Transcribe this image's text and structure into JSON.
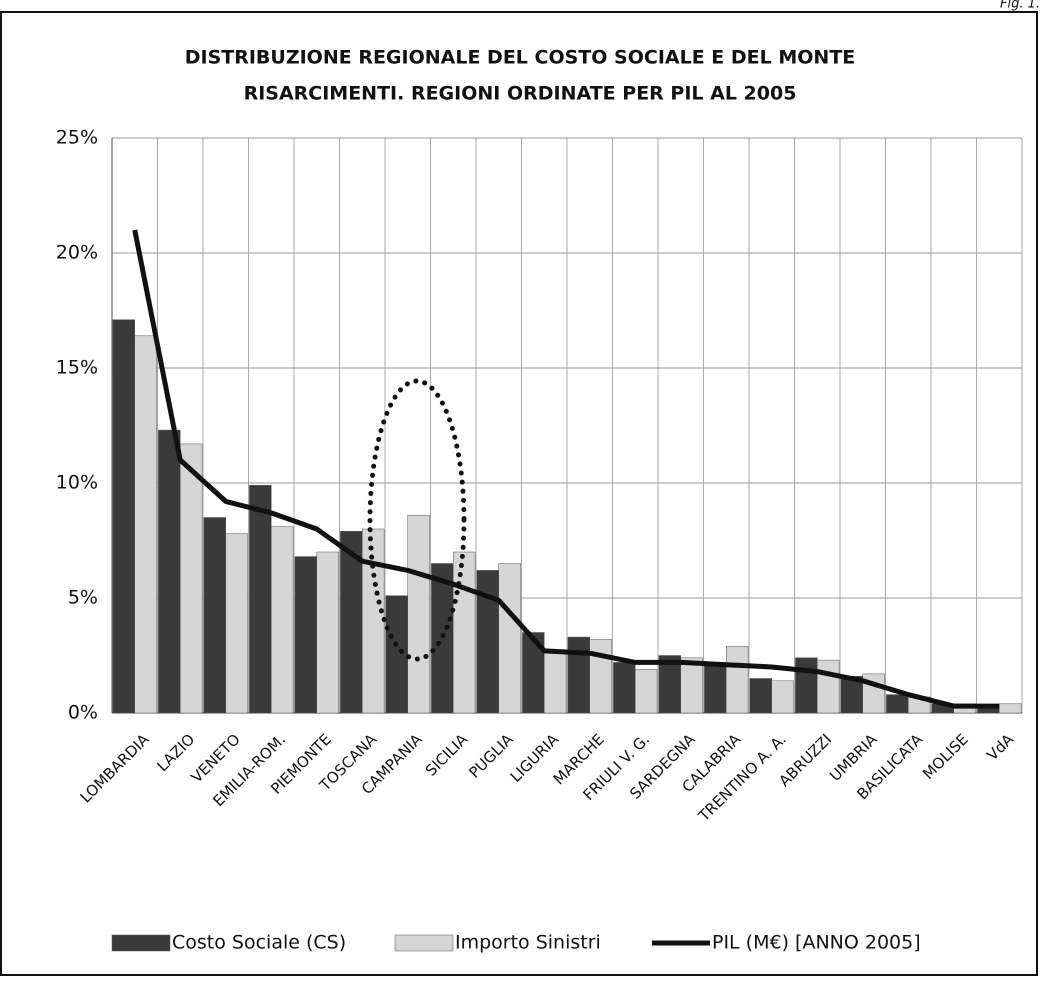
{
  "fig_label": "Fig. 1.",
  "chart_data": {
    "type": "bar_line",
    "title": [
      "DISTRIBUZIONE REGIONALE DEL COSTO SOCIALE E DEL MONTE",
      "RISARCIMENTI.  REGIONI ORDINATE PER PIL AL 2005"
    ],
    "categories": [
      "LOMBARDIA",
      "LAZIO",
      "VENETO",
      "EMILIA-ROM.",
      "PIEMONTE",
      "TOSCANA",
      "CAMPANIA",
      "SICILIA",
      "PUGLIA",
      "LIGURIA",
      "MARCHE",
      "FRIULI V. G.",
      "SARDEGNA",
      "CALABRIA",
      "TRENTINO A. A.",
      "ABRUZZI",
      "UMBRIA",
      "BASILICATA",
      "MOLISE",
      "VdA"
    ],
    "series": [
      {
        "name": "Costo Sociale (CS)",
        "kind": "bar",
        "color": "#3a3a3a",
        "values": [
          17.1,
          12.3,
          8.5,
          9.9,
          6.8,
          7.9,
          5.1,
          6.5,
          6.2,
          3.5,
          3.3,
          2.2,
          2.5,
          2.2,
          1.5,
          2.4,
          1.6,
          0.8,
          0.4,
          0.3
        ]
      },
      {
        "name": "Importo Sinistri",
        "kind": "bar",
        "color": "#d6d6d6",
        "values": [
          16.4,
          11.7,
          7.8,
          8.1,
          7.0,
          8.0,
          8.6,
          7.0,
          6.5,
          2.7,
          3.2,
          1.9,
          2.4,
          2.9,
          1.4,
          2.3,
          1.7,
          0.7,
          0.4,
          0.4
        ]
      },
      {
        "name": "PIL (M€) [ANNO 2005]",
        "kind": "line",
        "color": "#111111",
        "values": [
          21.0,
          11.0,
          9.2,
          8.7,
          8.0,
          6.6,
          6.2,
          5.6,
          4.9,
          2.7,
          2.6,
          2.2,
          2.2,
          2.1,
          2.0,
          1.8,
          1.4,
          0.8,
          0.3,
          0.3
        ]
      }
    ],
    "ylim": [
      0,
      25
    ],
    "yticks": [
      {
        "value": 0,
        "label": "0%"
      },
      {
        "value": 5,
        "label": "5%"
      },
      {
        "value": 10,
        "label": "10%"
      },
      {
        "value": 15,
        "label": "15%"
      },
      {
        "value": 20,
        "label": "20%"
      },
      {
        "value": 25,
        "label": "25%"
      }
    ],
    "grid": true,
    "legend": "bottom"
  }
}
